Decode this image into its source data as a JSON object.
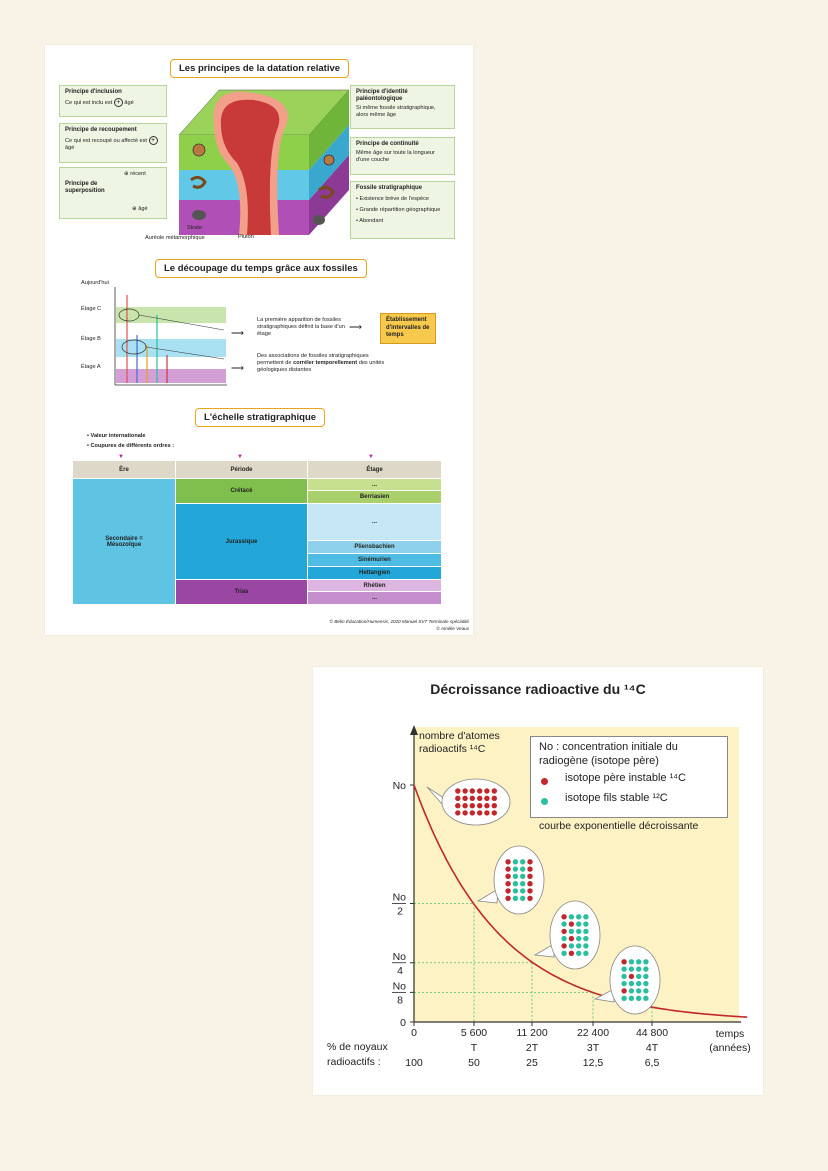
{
  "sheet": {
    "section1_title": "Les principes de la datation relative",
    "inclusion": {
      "title": "Principe d'inclusion",
      "text_pre": "Ce qui est inclu est",
      "text_post": "âgé"
    },
    "recoupement": {
      "title": "Principe de recoupement",
      "text_pre": "Ce qui est recoupé ou affecté est",
      "text_post": "âgé"
    },
    "superposition": {
      "title": "Principe de superposition",
      "recent": "récent",
      "age": "âgé"
    },
    "identite": {
      "title": "Principe d'identité paléontologique",
      "text": "Si même fossile stratigraphique, alors même âge"
    },
    "continuite": {
      "title": "Principe de continuité",
      "text": "Même âge sur toute la longueur d'une couche"
    },
    "fossile": {
      "title": "Fossile stratigraphique",
      "items": [
        "Existence brève de l'espèce",
        "Grande répartition géographique",
        "Abondant"
      ]
    },
    "block_labels": {
      "strate": "Strate",
      "aureole": "Auréole métamorphique",
      "pluton": "Pluton"
    },
    "section2_title": "Le découpage du temps grâce aux fossiles",
    "timeline": {
      "today": "Aujourd'hui",
      "etage_c": "Étage C",
      "etage_b": "Étage B",
      "etage_a": "Étage A"
    },
    "text_apparition": "La première apparition de fossiles stratigraphiques définit la base d'un étage",
    "text_assoc_pre": "Des associations de fossiles stratigraphiques permettent de",
    "text_assoc_bold": "corréler temporellement",
    "text_assoc_post": "des unités géologiques distantes",
    "etablissement": "Établissement d'intervalles de temps",
    "section3_title": "L'échelle stratigraphique",
    "bullets": [
      "Valeur internationale",
      "Coupures de différents ordres :"
    ],
    "table": {
      "headers": [
        "Ère",
        "Période",
        "Étage"
      ],
      "era": "Secondaire = Mésozoïque",
      "periods": [
        "Crétacé",
        "Jurassique",
        "Trias"
      ],
      "stages": [
        "...",
        "Berriasien",
        "...",
        "Pliensbachien",
        "Sinémurien",
        "Hettangien",
        "Rhétien",
        "..."
      ]
    },
    "credit1": "© Belin Éducation/Humensis, 2020 Manuel SVT Terminale spécialité",
    "credit2": "© Amélie Veaux"
  },
  "chart_data": {
    "type": "line",
    "title": "Décroissance radioactive du ¹⁴C",
    "ylabel": "nombre d'atomes radioactifs ¹⁴C",
    "xlabel": "temps (années)",
    "x_ticks": [
      "0",
      "5 600",
      "11 200",
      "22 400",
      "44 800"
    ],
    "x_period_labels": [
      "T",
      "2T",
      "3T",
      "4T"
    ],
    "y_ticks": [
      "No",
      "No/2",
      "No/4",
      "No/8",
      "0"
    ],
    "row_labels": [
      "% de noyaux",
      "radioactifs :"
    ],
    "percent_values": [
      "100",
      "50",
      "25",
      "12,5",
      "6,5"
    ],
    "legend": [
      "No : concentration initiale du radiogène (isotope père)",
      "isotope père instable ¹⁴C",
      "isotope fils stable ¹²C"
    ],
    "curve_label": "courbe exponentielle décroissante",
    "series": [
      {
        "values": [
          1,
          0.5,
          0.25,
          0.125,
          0.065
        ]
      }
    ],
    "colors": {
      "parent": "#c1272d",
      "child": "#2bbfa0",
      "curve": "#c0272d",
      "background": "#fdf2c4"
    }
  }
}
